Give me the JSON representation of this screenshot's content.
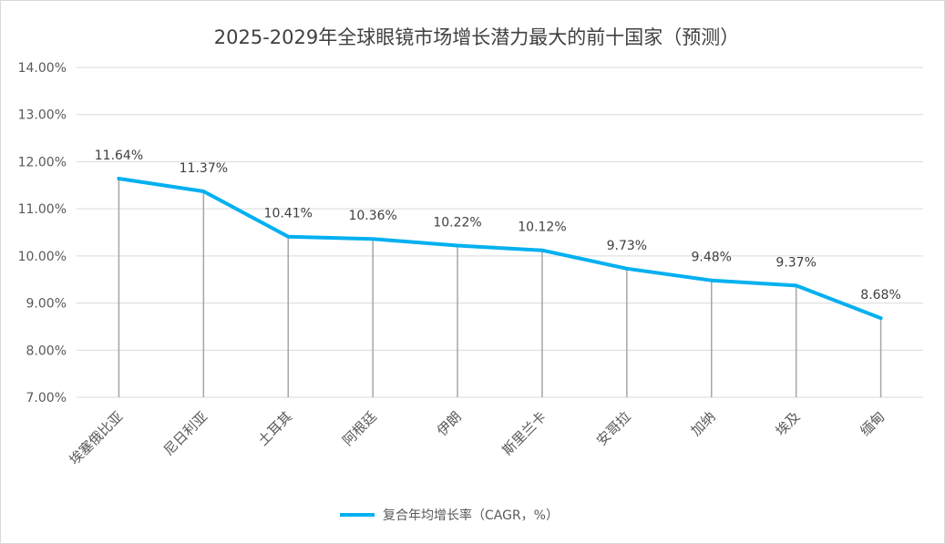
{
  "chart_data": {
    "type": "line",
    "title": "2025-2029年全球眼镜市场增长潜力最大的前十国家（预测）",
    "xlabel": "",
    "ylabel": "",
    "categories": [
      "埃塞俄比亚",
      "尼日利亚",
      "土耳其",
      "阿根廷",
      "伊朗",
      "斯里兰卡",
      "安哥拉",
      "加纳",
      "埃及",
      "缅甸"
    ],
    "series": [
      {
        "name": "复合年均增长率（CAGR，%）",
        "values": [
          11.64,
          11.37,
          10.41,
          10.36,
          10.22,
          10.12,
          9.73,
          9.48,
          9.37,
          8.68
        ],
        "data_labels": [
          "11.64%",
          "11.37%",
          "10.41%",
          "10.36%",
          "10.22%",
          "10.12%",
          "9.73%",
          "9.48%",
          "9.37%",
          "8.68%"
        ],
        "color": "#00b0f0"
      }
    ],
    "ylim": [
      7,
      14
    ],
    "yticks": [
      "7.00%",
      "8.00%",
      "9.00%",
      "10.00%",
      "11.00%",
      "12.00%",
      "13.00%",
      "14.00%"
    ],
    "grid": true,
    "drop_lines": true,
    "legend_position": "bottom"
  },
  "colors": {
    "line": "#00b0f0",
    "grid": "#d9d9d9",
    "drop_line": "#a6a6a6"
  }
}
